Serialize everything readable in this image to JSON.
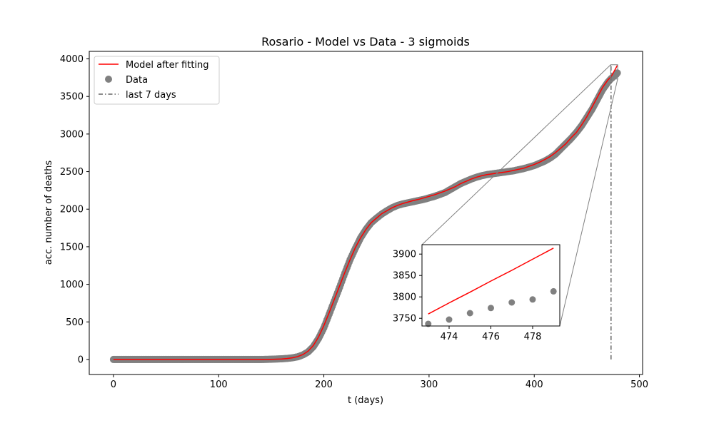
{
  "chart_data": {
    "type": "line",
    "title": "Rosario - Model vs Data - 3 sigmoids",
    "xlabel": "t (days)",
    "ylabel": "acc. number of deaths",
    "xlim": [
      -23,
      503
    ],
    "ylim": [
      -200,
      4100
    ],
    "xticks": [
      0,
      100,
      200,
      300,
      400,
      500
    ],
    "yticks": [
      0,
      500,
      1000,
      1500,
      2000,
      2500,
      3000,
      3500,
      4000
    ],
    "grid": false,
    "legend_position": "top-left",
    "legend": [
      "Model after fitting",
      "Data",
      "last 7 days"
    ],
    "colors": {
      "model": "#ff0000",
      "data": "#808080",
      "last7": "#666666",
      "zoom_lines": "#808080"
    },
    "x": [
      0,
      20,
      40,
      60,
      80,
      100,
      120,
      140,
      150,
      155,
      160,
      165,
      170,
      175,
      180,
      185,
      190,
      195,
      200,
      205,
      210,
      215,
      220,
      225,
      230,
      235,
      240,
      245,
      250,
      255,
      260,
      265,
      270,
      275,
      280,
      285,
      290,
      295,
      300,
      305,
      310,
      315,
      320,
      325,
      330,
      335,
      340,
      345,
      350,
      355,
      360,
      365,
      370,
      375,
      380,
      385,
      390,
      395,
      400,
      405,
      410,
      415,
      420,
      425,
      430,
      435,
      440,
      445,
      450,
      455,
      460,
      465,
      470,
      473,
      474,
      475,
      476,
      477,
      478,
      479
    ],
    "series": [
      {
        "name": "Model after fitting",
        "values": [
          0,
          0,
          0,
          0,
          0,
          0,
          0,
          0,
          2,
          4,
          7,
          12,
          22,
          38,
          65,
          110,
          185,
          300,
          450,
          620,
          800,
          980,
          1160,
          1330,
          1490,
          1620,
          1730,
          1820,
          1880,
          1940,
          1980,
          2020,
          2050,
          2075,
          2095,
          2115,
          2130,
          2150,
          2170,
          2190,
          2215,
          2240,
          2270,
          2300,
          2340,
          2370,
          2400,
          2425,
          2445,
          2460,
          2470,
          2480,
          2490,
          2500,
          2515,
          2530,
          2545,
          2570,
          2595,
          2625,
          2660,
          2700,
          2750,
          2810,
          2870,
          2950,
          3020,
          3120,
          3230,
          3360,
          3490,
          3620,
          3720,
          3760,
          3786,
          3811,
          3837,
          3862,
          3888,
          3914
        ]
      },
      {
        "name": "Data",
        "values": [
          0,
          0,
          0,
          0,
          0,
          0,
          0,
          0,
          3,
          6,
          9,
          14,
          22,
          35,
          60,
          100,
          170,
          280,
          420,
          600,
          780,
          960,
          1150,
          1330,
          1480,
          1620,
          1730,
          1820,
          1880,
          1935,
          1980,
          2020,
          2050,
          2070,
          2085,
          2100,
          2115,
          2130,
          2150,
          2170,
          2195,
          2220,
          2260,
          2300,
          2340,
          2370,
          2400,
          2425,
          2445,
          2460,
          2470,
          2480,
          2490,
          2500,
          2510,
          2525,
          2540,
          2560,
          2580,
          2610,
          2640,
          2680,
          2730,
          2800,
          2870,
          2940,
          3020,
          3110,
          3220,
          3330,
          3460,
          3590,
          3690,
          3737,
          3747,
          3762,
          3774,
          3787,
          3794,
          3813
        ]
      }
    ],
    "last_7_days_x": 473,
    "inset": {
      "xlim": [
        472.7,
        479.3
      ],
      "ylim": [
        3732,
        3922
      ],
      "xticks": [
        474,
        476,
        478
      ],
      "yticks": [
        3750,
        3800,
        3850,
        3900
      ]
    }
  }
}
